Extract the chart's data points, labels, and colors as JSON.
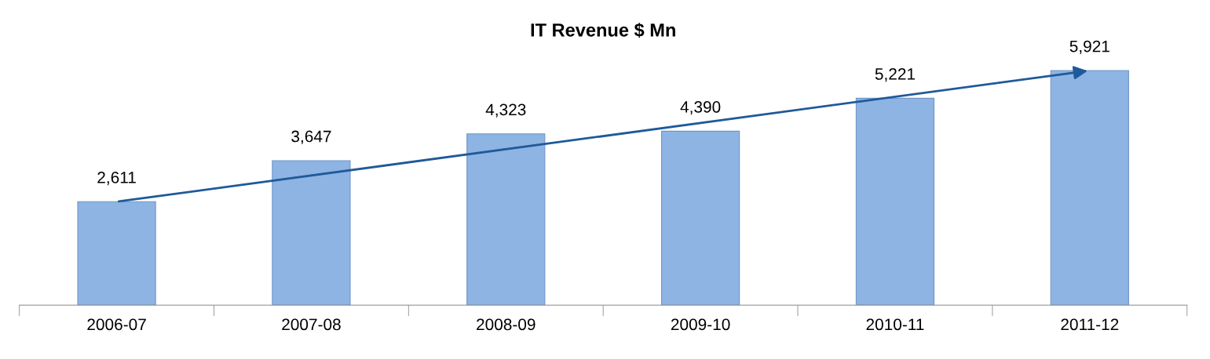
{
  "chart_data": {
    "type": "bar",
    "title": "IT Revenue $ Mn",
    "categories": [
      "2006-07",
      "2007-08",
      "2008-09",
      "2009-10",
      "2010-11",
      "2011-12"
    ],
    "values": [
      2611,
      3647,
      4323,
      4390,
      5221,
      5921
    ],
    "value_labels": [
      "2,611",
      "3,647",
      "4,323",
      "4,390",
      "5,221",
      "5,921"
    ],
    "color": "#8db4e2",
    "grid": false,
    "legend": false
  }
}
